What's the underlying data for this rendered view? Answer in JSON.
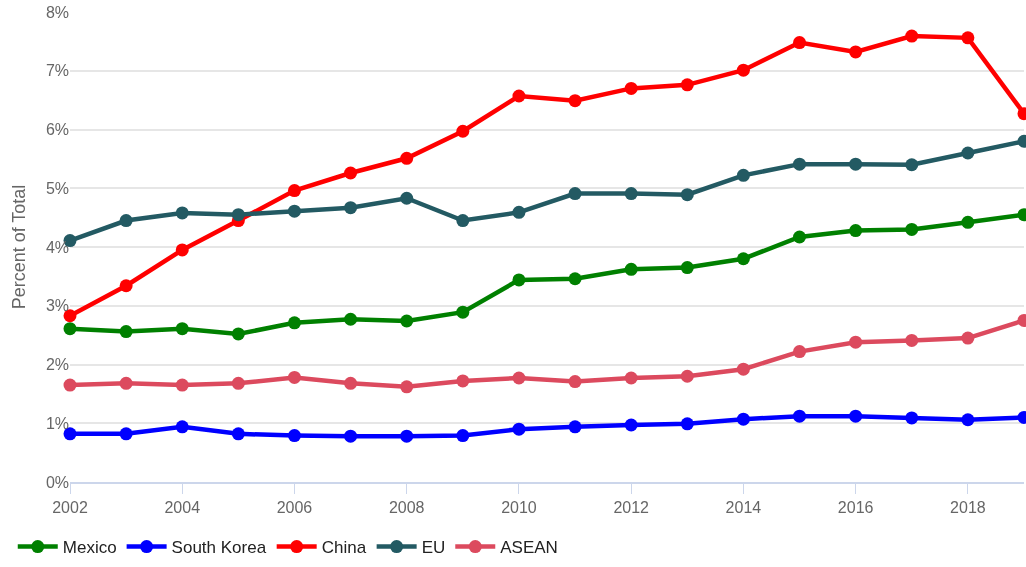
{
  "chart_data": {
    "type": "line",
    "ylabel": "Percent of Total",
    "x": [
      2002,
      2003,
      2004,
      2005,
      2006,
      2007,
      2008,
      2009,
      2010,
      2011,
      2012,
      2013,
      2014,
      2015,
      2016,
      2017,
      2018,
      2019
    ],
    "series": [
      {
        "name": "Mexico",
        "color": "#008000",
        "values": [
          2.61,
          2.56,
          2.61,
          2.52,
          2.71,
          2.77,
          2.74,
          2.89,
          3.44,
          3.46,
          3.62,
          3.65,
          3.8,
          4.17,
          4.28,
          4.3,
          4.42,
          4.55
        ]
      },
      {
        "name": "South Korea",
        "color": "#0000ff",
        "values": [
          0.82,
          0.82,
          0.94,
          0.82,
          0.79,
          0.78,
          0.78,
          0.79,
          0.9,
          0.94,
          0.97,
          0.99,
          1.07,
          1.12,
          1.12,
          1.09,
          1.06,
          1.1
        ]
      },
      {
        "name": "China",
        "color": "#ff0000",
        "values": [
          2.83,
          3.34,
          3.95,
          4.45,
          4.96,
          5.26,
          5.51,
          5.97,
          6.57,
          6.49,
          6.7,
          6.76,
          7.01,
          7.48,
          7.32,
          7.59,
          7.56,
          6.27
        ]
      },
      {
        "name": "EU",
        "color": "#235a63",
        "values": [
          4.11,
          4.45,
          4.58,
          4.55,
          4.61,
          4.67,
          4.83,
          4.45,
          4.59,
          4.91,
          4.91,
          4.89,
          5.22,
          5.41,
          5.41,
          5.4,
          5.6,
          5.8
        ]
      },
      {
        "name": "ASEAN",
        "color": "#dc4a5e",
        "values": [
          1.65,
          1.68,
          1.65,
          1.68,
          1.78,
          1.68,
          1.62,
          1.72,
          1.77,
          1.71,
          1.77,
          1.8,
          1.92,
          2.22,
          2.38,
          2.41,
          2.45,
          2.75
        ]
      }
    ],
    "xlim": [
      2002,
      2019
    ],
    "xticks": [
      2002,
      2004,
      2006,
      2008,
      2010,
      2012,
      2014,
      2016,
      2018
    ],
    "ylim": [
      0,
      8
    ],
    "yticks": [
      {
        "value": 0,
        "label": "0%"
      },
      {
        "value": 1,
        "label": "1%"
      },
      {
        "value": 2,
        "label": "2%"
      },
      {
        "value": 3,
        "label": "3%"
      },
      {
        "value": 4,
        "label": "4%"
      },
      {
        "value": 5,
        "label": "5%"
      },
      {
        "value": 6,
        "label": "6%"
      },
      {
        "value": 7,
        "label": "7%"
      },
      {
        "value": 8,
        "label": "8%"
      }
    ],
    "grid": "y",
    "legend": "bottom left",
    "marker": "circle",
    "line_style": "solid"
  }
}
